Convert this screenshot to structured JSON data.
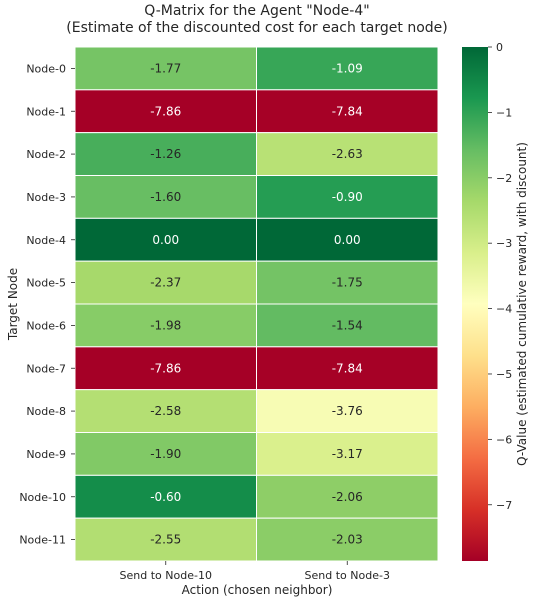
{
  "chart_data": {
    "type": "heatmap",
    "title": "Q-Matrix for the Agent \"Node-4\"",
    "subtitle": "(Estimate of the discounted cost for each target node)",
    "xlabel": "Action (chosen neighbor)",
    "ylabel": "Target Node",
    "x_categories": [
      "Send to Node-10",
      "Send to Node-3"
    ],
    "y_categories": [
      "Node-0",
      "Node-1",
      "Node-2",
      "Node-3",
      "Node-4",
      "Node-5",
      "Node-6",
      "Node-7",
      "Node-8",
      "Node-9",
      "Node-10",
      "Node-11"
    ],
    "values": [
      [
        -1.77,
        -1.09
      ],
      [
        -7.86,
        -7.84
      ],
      [
        -1.26,
        -2.63
      ],
      [
        -1.6,
        -0.9
      ],
      [
        0.0,
        0.0
      ],
      [
        -2.37,
        -1.75
      ],
      [
        -1.98,
        -1.54
      ],
      [
        -7.86,
        -7.84
      ],
      [
        -2.58,
        -3.76
      ],
      [
        -1.9,
        -3.17
      ],
      [
        -0.6,
        -2.06
      ],
      [
        -2.55,
        -2.03
      ]
    ],
    "value_format": "0.00",
    "colormap": "RdYlGn",
    "color_range": [
      -7.86,
      0
    ],
    "colorbar": {
      "label": "Q-Value (estimated cumulative reward, with discount)",
      "ticks": [
        0,
        -1,
        -2,
        -3,
        -4,
        -5,
        -6,
        -7
      ],
      "tick_labels": [
        "0",
        "−1",
        "−2",
        "−3",
        "−4",
        "−5",
        "−6",
        "−7"
      ]
    }
  }
}
